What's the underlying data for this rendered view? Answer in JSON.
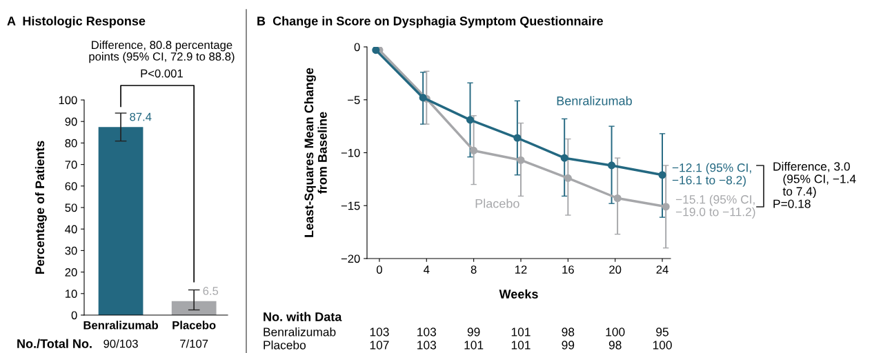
{
  "chart_data": [
    {
      "type": "bar",
      "title": "A  Histologic Response",
      "ylabel": "Percentage of Patients",
      "categories": [
        "Benralizumab",
        "Placebo"
      ],
      "values": [
        87.4,
        6.5
      ],
      "colors": [
        "#236881",
        "#a6a7aa"
      ],
      "errors": [
        [
          80.9,
          93.9
        ],
        [
          2.4,
          11.7
        ]
      ],
      "data_labels": true,
      "ylim": [
        0,
        100
      ],
      "yticks": [
        0,
        10,
        20,
        30,
        40,
        50,
        60,
        70,
        80,
        90,
        100
      ],
      "grid": false,
      "annotations": [
        "Difference, 80.8 percentage\npoints (95% CI, 72.9 to 88.8)",
        "P<0.001",
        "No./Total No.",
        "90/103",
        "7/107"
      ]
    },
    {
      "type": "line",
      "title": "B  Change in Score on Dysphagia Symptom Questionnaire",
      "xlabel": "Weeks",
      "ylabel": "Least-Squares Mean Change\nfrom Baseline",
      "marker": "circle",
      "line_style": "solid",
      "grid": false,
      "series": [
        {
          "name": "Benralizumab",
          "color": "#236881",
          "x": [
            -0.3,
            3.7,
            7.7,
            11.7,
            15.7,
            19.7,
            24
          ],
          "values": [
            -0.3,
            -4.8,
            -6.9,
            -8.6,
            -10.5,
            -11.2,
            -12.1
          ],
          "errors": [
            null,
            [
              -7.3,
              -2.4
            ],
            [
              -10.4,
              -3.4
            ],
            [
              -12.1,
              -5.1
            ],
            [
              -14.1,
              -6.8
            ],
            [
              -14.8,
              -7.5
            ],
            [
              -16.1,
              -8.2
            ]
          ]
        },
        {
          "name": "Placebo",
          "color": "#a6a7aa",
          "x": [
            0,
            4,
            8,
            12,
            16,
            20.2,
            24.3
          ],
          "values": [
            -0.3,
            -4.9,
            -9.8,
            -10.7,
            -12.4,
            -14.3,
            -15.1
          ],
          "errors": [
            null,
            [
              -7.3,
              -2.3
            ],
            [
              -13.0,
              -6.5
            ],
            [
              -14.1,
              -7.2
            ],
            [
              -15.9,
              -8.7
            ],
            [
              -17.7,
              -10.5
            ],
            [
              -19.0,
              -11.2
            ]
          ]
        }
      ],
      "xlim": [
        -1.05,
        24.7
      ],
      "xticks": [
        0,
        4,
        8,
        12,
        16,
        20,
        24
      ],
      "ylim": [
        -20,
        0
      ],
      "yticks": [
        {
          "value": 0,
          "label": "0"
        },
        {
          "value": -5,
          "label": "−5"
        },
        {
          "value": -10,
          "label": "−10"
        },
        {
          "value": -15,
          "label": "−15"
        },
        {
          "value": -20,
          "label": "−20"
        }
      ],
      "annotations": [
        {
          "text": "−12.1 (95% CI,\n−16.1 to −8.2)",
          "x": 24,
          "y": -12.1
        },
        {
          "text": "−15.1 (95% CI,\n−19.0 to −11.2)",
          "x": 24.3,
          "y": -15.1
        },
        "Difference, 3.0\n   (95% CI, −1.4\n   to 7.4)\nP=0.18",
        "No. with Data",
        "Benralizumab",
        "103",
        "103",
        "99",
        "101",
        "98",
        "100",
        "95",
        "Placebo",
        "107",
        "103",
        "101",
        "101",
        "99",
        "98",
        "100"
      ]
    }
  ]
}
